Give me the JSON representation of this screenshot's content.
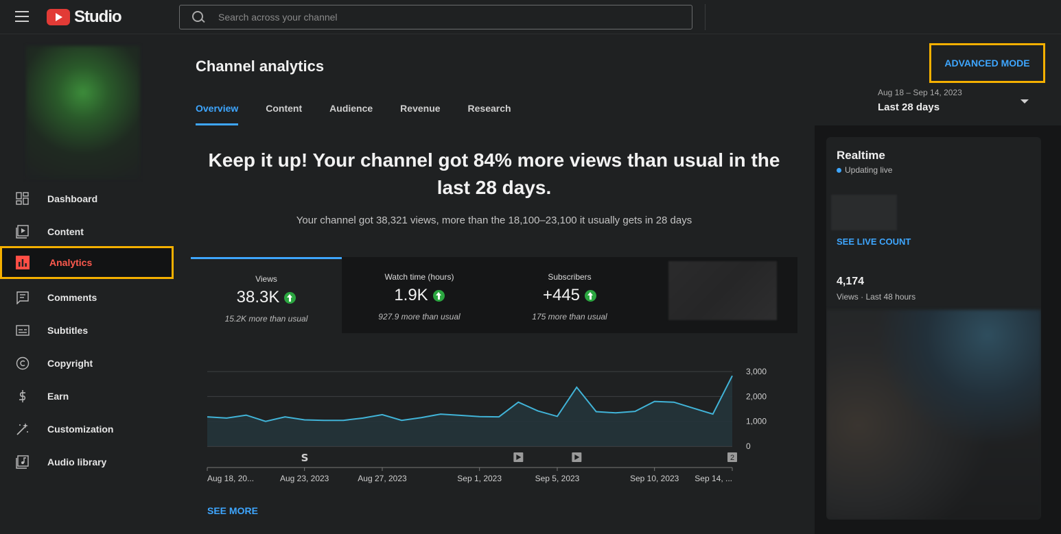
{
  "app": {
    "title": "Studio"
  },
  "search": {
    "placeholder": "Search across your channel"
  },
  "sidebar": {
    "items": [
      {
        "label": "Dashboard",
        "icon": "dashboard-icon",
        "active": false
      },
      {
        "label": "Content",
        "icon": "content-icon",
        "active": false
      },
      {
        "label": "Analytics",
        "icon": "analytics-icon",
        "active": true
      },
      {
        "label": "Comments",
        "icon": "comments-icon",
        "active": false
      },
      {
        "label": "Subtitles",
        "icon": "subtitles-icon",
        "active": false
      },
      {
        "label": "Copyright",
        "icon": "copyright-icon",
        "active": false
      },
      {
        "label": "Earn",
        "icon": "earn-icon",
        "active": false
      },
      {
        "label": "Customization",
        "icon": "customization-icon",
        "active": false
      },
      {
        "label": "Audio library",
        "icon": "audio-library-icon",
        "active": false
      }
    ]
  },
  "page": {
    "title": "Channel analytics",
    "advanced_mode": "ADVANCED MODE",
    "date_range": "Aug 18 – Sep 14, 2023",
    "date_preset": "Last 28 days",
    "tabs": [
      "Overview",
      "Content",
      "Audience",
      "Revenue",
      "Research"
    ],
    "active_tab": "Overview",
    "headline": "Keep it up! Your channel got 84% more views than usual in the last 28 days.",
    "subline": "Your channel got 38,321 views, more than the 18,100–23,100 it usually gets in 28 days",
    "see_more": "SEE MORE"
  },
  "metrics": [
    {
      "label": "Views",
      "value": "38.3K",
      "note": "15.2K more than usual",
      "trend": "up"
    },
    {
      "label": "Watch time (hours)",
      "value": "1.9K",
      "note": "927.9 more than usual",
      "trend": "up"
    },
    {
      "label": "Subscribers",
      "value": "+445",
      "note": "175 more than usual",
      "trend": "up"
    }
  ],
  "chart_data": {
    "type": "area",
    "title": "",
    "xlabel": "",
    "ylabel": "",
    "x_tick_labels": [
      "Aug 18, 20...",
      "Aug 23, 2023",
      "Aug 27, 2023",
      "Sep 1, 2023",
      "Sep 5, 2023",
      "Sep 10, 2023",
      "Sep 14, ..."
    ],
    "y_tick_labels": [
      "0",
      "1,000",
      "2,000",
      "3,000"
    ],
    "ylim": [
      0,
      3000
    ],
    "grid": true,
    "series": [
      {
        "name": "",
        "values": [
          1180,
          1130,
          1250,
          1000,
          1180,
          1060,
          1040,
          1040,
          1130,
          1270,
          1040,
          1150,
          1290,
          1240,
          1190,
          1180,
          1770,
          1420,
          1200,
          2370,
          1390,
          1340,
          1400,
          1800,
          1770,
          1530,
          1290,
          2830
        ]
      }
    ],
    "markers": [
      {
        "day": 5,
        "icon": "shorts-icon"
      },
      {
        "day": 16,
        "icon": "video-icon"
      },
      {
        "day": 19,
        "icon": "video-icon"
      },
      {
        "day": 27,
        "label": "2"
      }
    ]
  },
  "realtime": {
    "title": "Realtime",
    "status": "Updating live",
    "see_live": "SEE LIVE COUNT",
    "count": "4,174",
    "count_label": "Views · Last 48 hours"
  }
}
